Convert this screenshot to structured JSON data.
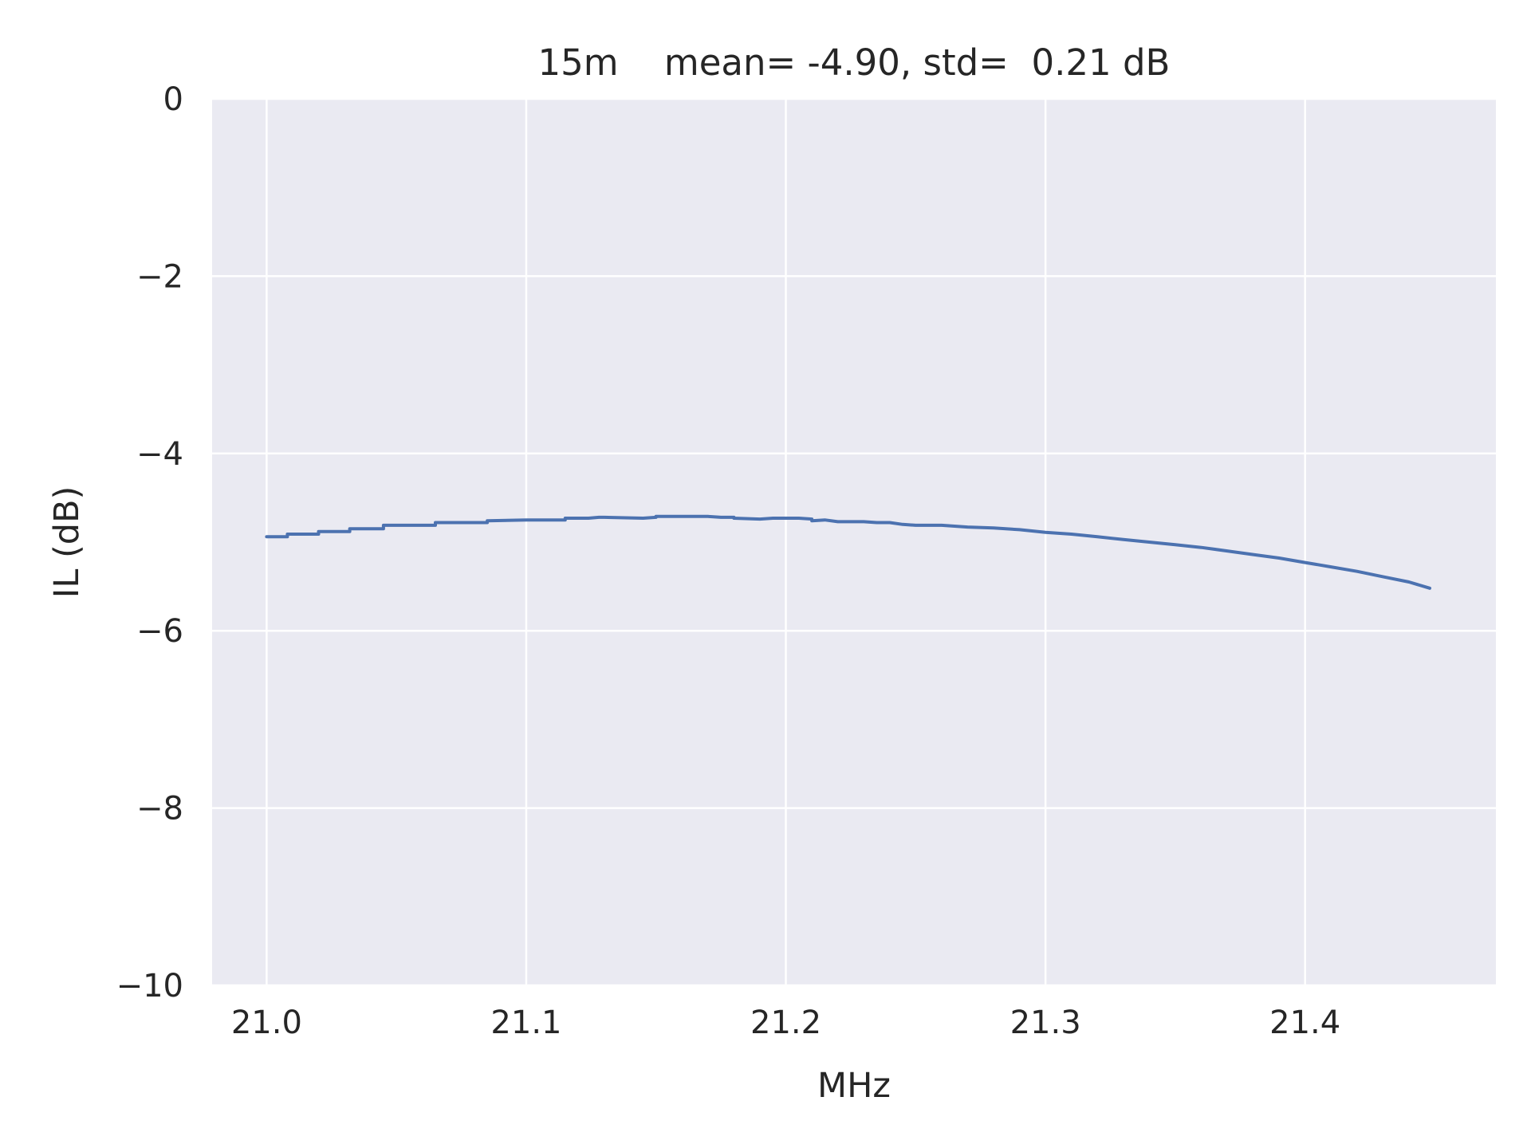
{
  "colors": {
    "plot_background": "#EAEAF2",
    "grid": "#FFFFFF",
    "line": "#4C72B0",
    "text": "#262626"
  },
  "chart_data": {
    "type": "line",
    "title": "15m    mean= -4.90, std=  0.21 dB",
    "xlabel": "MHz",
    "ylabel": "IL (dB)",
    "xlim": [
      20.979,
      21.4735
    ],
    "ylim": [
      -10,
      0
    ],
    "grid": true,
    "xticks": [
      21.0,
      21.1,
      21.2,
      21.3,
      21.4
    ],
    "xtick_labels": [
      "21.0",
      "21.1",
      "21.2",
      "21.3",
      "21.4"
    ],
    "yticks": [
      0,
      -2,
      -4,
      -6,
      -8,
      -10
    ],
    "ytick_labels": [
      "0",
      "−2",
      "−4",
      "−6",
      "−8",
      "−10"
    ],
    "series": [
      {
        "x": [
          21.0,
          21.008,
          21.008,
          21.02,
          21.02,
          21.032,
          21.032,
          21.045,
          21.045,
          21.065,
          21.065,
          21.085,
          21.085,
          21.1,
          21.115,
          21.115,
          21.118,
          21.124,
          21.128,
          21.13,
          21.145,
          21.15,
          21.15,
          21.17,
          21.175,
          21.18,
          21.18,
          21.19,
          21.195,
          21.205,
          21.21,
          21.21,
          21.215,
          21.22,
          21.225,
          21.23,
          21.235,
          21.24,
          21.245,
          21.25,
          21.26,
          21.27,
          21.28,
          21.29,
          21.3,
          21.31,
          21.32,
          21.33,
          21.34,
          21.35,
          21.36,
          21.37,
          21.38,
          21.39,
          21.4,
          21.41,
          21.42,
          21.43,
          21.44,
          21.448
        ],
        "y": [
          -4.94,
          -4.94,
          -4.91,
          -4.91,
          -4.88,
          -4.88,
          -4.85,
          -4.85,
          -4.81,
          -4.81,
          -4.78,
          -4.78,
          -4.76,
          -4.75,
          -4.75,
          -4.73,
          -4.73,
          -4.73,
          -4.72,
          -4.72,
          -4.73,
          -4.72,
          -4.71,
          -4.71,
          -4.72,
          -4.72,
          -4.73,
          -4.74,
          -4.73,
          -4.73,
          -4.74,
          -4.76,
          -4.75,
          -4.77,
          -4.77,
          -4.77,
          -4.78,
          -4.78,
          -4.8,
          -4.81,
          -4.81,
          -4.83,
          -4.84,
          -4.86,
          -4.89,
          -4.91,
          -4.94,
          -4.97,
          -5.0,
          -5.03,
          -5.06,
          -5.1,
          -5.14,
          -5.18,
          -5.23,
          -5.28,
          -5.33,
          -5.39,
          -5.45,
          -5.52
        ]
      }
    ]
  }
}
